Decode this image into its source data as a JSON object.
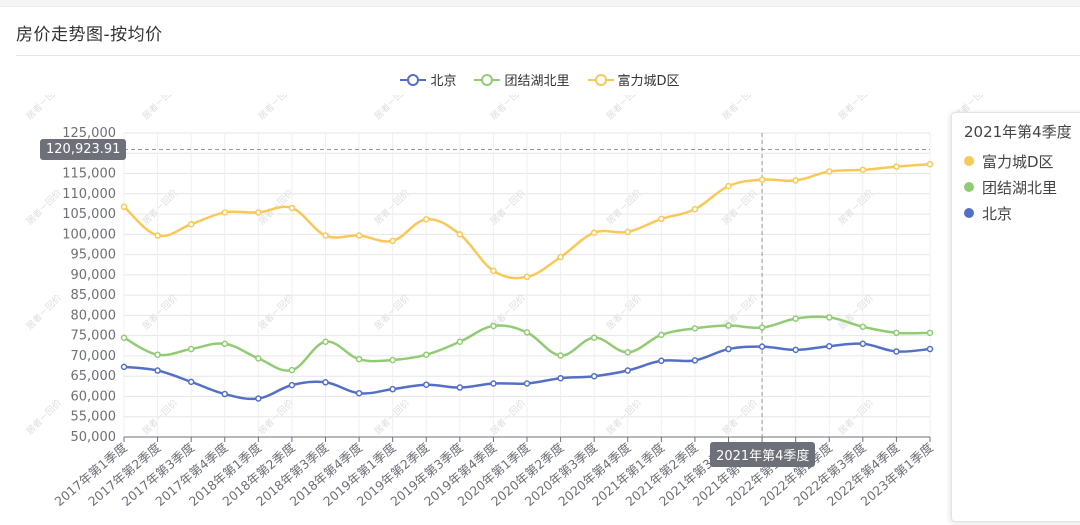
{
  "page": {
    "title": "房价走势图-按均价"
  },
  "watermark": "居者－回价",
  "colors": {
    "beijing": "#5470c6",
    "tuanjie": "#91cc75",
    "fuli": "#fac858"
  },
  "chart_data": {
    "type": "line",
    "smooth": true,
    "categories": [
      "2017年第1季度",
      "2017年第2季度",
      "2017年第3季度",
      "2017年第4季度",
      "2018年第1季度",
      "2018年第2季度",
      "2018年第3季度",
      "2018年第4季度",
      "2019年第1季度",
      "2019年第2季度",
      "2019年第3季度",
      "2019年第4季度",
      "2020年第1季度",
      "2020年第2季度",
      "2020年第3季度",
      "2020年第4季度",
      "2021年第1季度",
      "2021年第2季度",
      "2021年第3季度",
      "2021年第4季度",
      "2022年第1季度",
      "2022年第2季度",
      "2022年第3季度",
      "2022年第4季度",
      "2023年第1季度"
    ],
    "ylim": [
      50000,
      125000
    ],
    "yticks": [
      "50,000",
      "55,000",
      "60,000",
      "65,000",
      "70,000",
      "75,000",
      "80,000",
      "85,000",
      "90,000",
      "95,000",
      "100,000",
      "105,000",
      "110,000",
      "115,000",
      "120,000",
      "125,000"
    ],
    "grid": true,
    "legend_position": "top",
    "series": [
      {
        "name": "北京",
        "color": "#5470c6",
        "values": [
          67300,
          66400,
          63600,
          60600,
          59500,
          62800,
          63500,
          60800,
          61800,
          62900,
          62200,
          63200,
          63200,
          64500,
          65000,
          66400,
          68800,
          68900,
          71700,
          72300,
          71500,
          72400,
          73000,
          71100,
          71700
        ]
      },
      {
        "name": "团结湖北里",
        "color": "#91cc75",
        "values": [
          74500,
          70300,
          71700,
          73000,
          69400,
          66500,
          73500,
          69200,
          69000,
          70300,
          73500,
          77400,
          75800,
          70100,
          74500,
          70900,
          75200,
          76800,
          77500,
          77000,
          79200,
          79500,
          77200,
          75700,
          75700
        ]
      },
      {
        "name": "富力城D区",
        "color": "#fac858",
        "values": [
          106800,
          99700,
          102500,
          105400,
          105400,
          106500,
          99700,
          99700,
          98400,
          103700,
          100000,
          91000,
          89500,
          94400,
          100400,
          100600,
          103800,
          106200,
          111900,
          113500,
          113300,
          115500,
          115900,
          116700,
          117300
        ]
      }
    ],
    "axis_pointer": {
      "y_value": "120,923.91",
      "x_label": "2021年第4季度"
    }
  },
  "tooltip": {
    "title": "2021年第4季度",
    "rows": [
      {
        "name": "富力城D区",
        "color": "#fac858"
      },
      {
        "name": "团结湖北里",
        "color": "#91cc75"
      },
      {
        "name": "北京",
        "color": "#5470c6"
      }
    ]
  }
}
